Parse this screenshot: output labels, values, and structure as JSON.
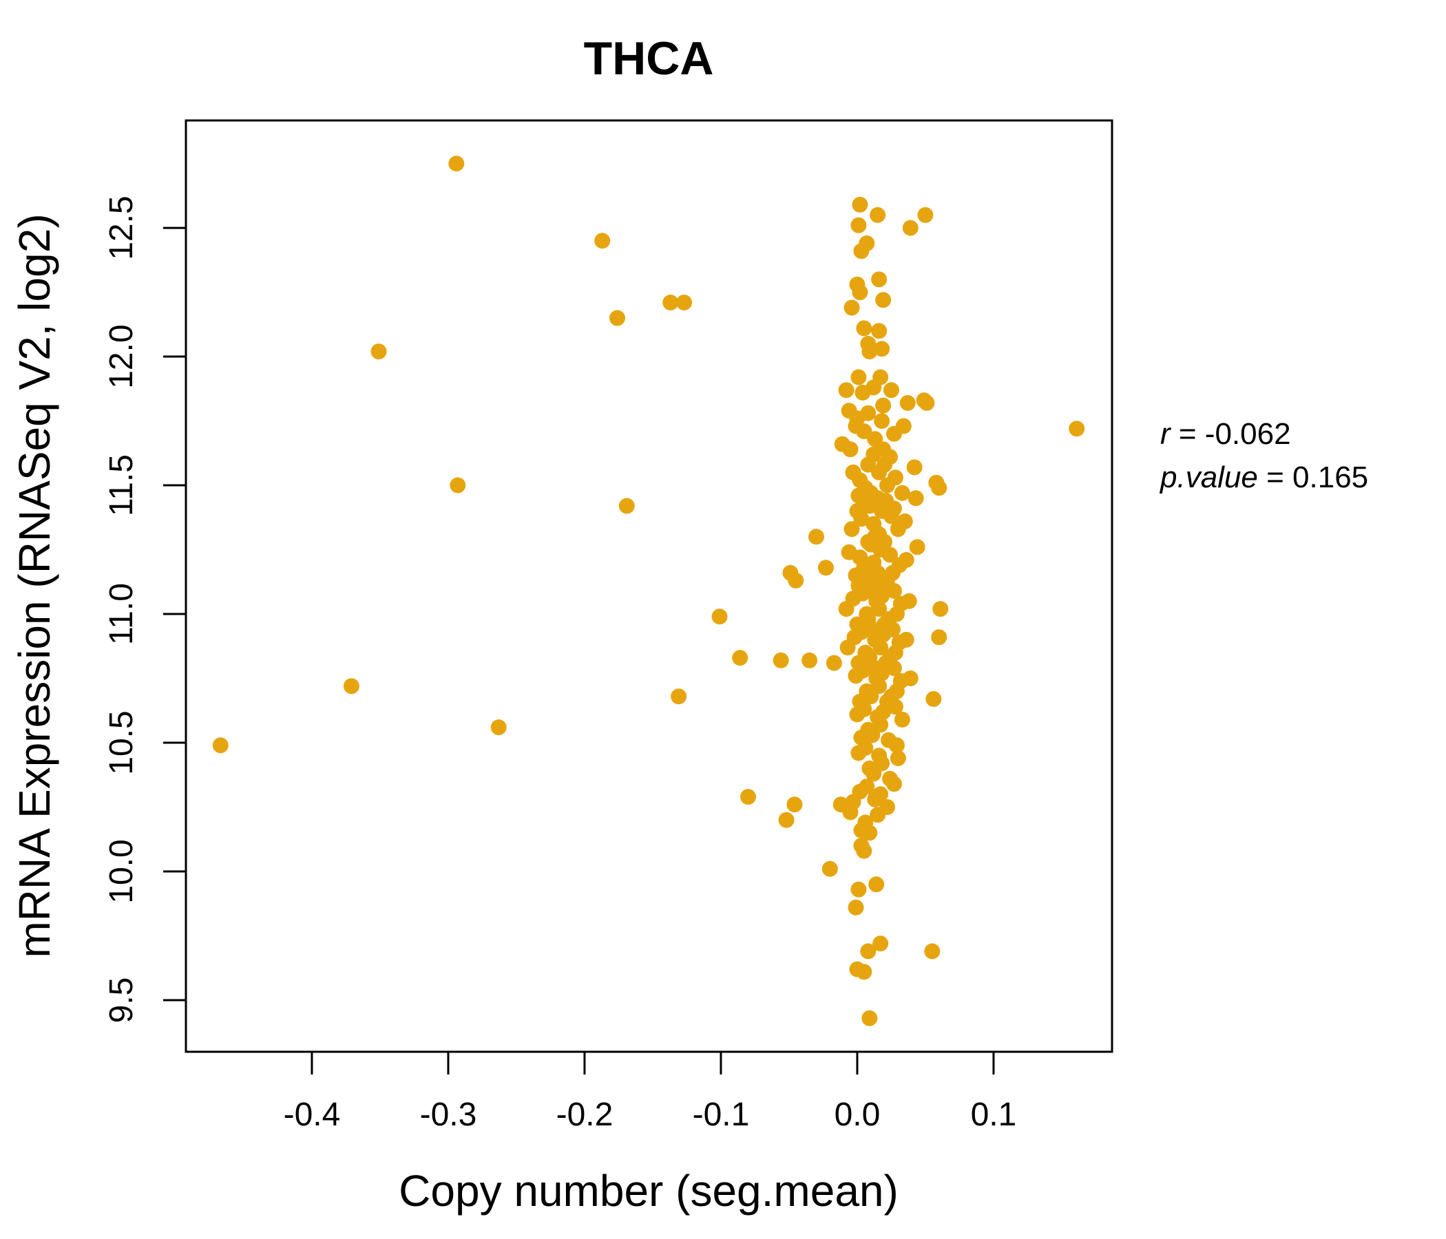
{
  "title": {
    "text": "THCA",
    "color": "#E6A50F"
  },
  "annotation": {
    "r_label": "r",
    "r_rest": " = -0.062",
    "p_label": "p.value",
    "p_rest": " = 0.165"
  },
  "chart_data": {
    "type": "scatter",
    "title": "THCA",
    "xlabel": "Copy number (seg.mean)",
    "ylabel": "mRNA Expression (RNASeq V2, log2)",
    "x_ticks": [
      -0.4,
      -0.3,
      -0.2,
      -0.1,
      0.0,
      0.1
    ],
    "x_tick_labels": [
      "-0.4",
      "-0.3",
      "-0.2",
      "-0.1",
      "0.0",
      "0.1"
    ],
    "y_ticks": [
      9.5,
      10.0,
      10.5,
      11.0,
      11.5,
      12.0,
      12.5
    ],
    "y_tick_labels": [
      "9.5",
      "10.0",
      "10.5",
      "11.0",
      "11.5",
      "12.0",
      "12.5"
    ],
    "xlim": [
      -0.4924,
      0.1869
    ],
    "ylim": [
      9.2995,
      12.9173
    ],
    "grid": false,
    "legend": "none",
    "point_color": "#E6A50F",
    "marker": "filled-circle",
    "marker_radius_px": 11.5,
    "correlation": {
      "r": -0.062,
      "p_value": 0.165
    },
    "points": [
      [
        -0.467,
        10.49
      ],
      [
        -0.371,
        10.72
      ],
      [
        -0.351,
        12.02
      ],
      [
        -0.294,
        12.75
      ],
      [
        -0.293,
        11.5
      ],
      [
        -0.263,
        10.56
      ],
      [
        -0.187,
        12.45
      ],
      [
        -0.176,
        12.15
      ],
      [
        -0.169,
        11.42
      ],
      [
        -0.137,
        12.21
      ],
      [
        -0.127,
        12.21
      ],
      [
        -0.131,
        10.68
      ],
      [
        -0.101,
        10.99
      ],
      [
        -0.086,
        10.83
      ],
      [
        -0.08,
        10.29
      ],
      [
        -0.056,
        10.82
      ],
      [
        -0.049,
        11.16
      ],
      [
        -0.046,
        10.26
      ],
      [
        -0.052,
        10.2
      ],
      [
        -0.045,
        11.13
      ],
      [
        -0.035,
        10.82
      ],
      [
        -0.03,
        11.3
      ],
      [
        -0.023,
        11.18
      ],
      [
        -0.017,
        10.81
      ],
      [
        -0.02,
        10.01
      ],
      [
        0.161,
        11.72
      ],
      [
        0.06,
        11.49
      ],
      [
        0.058,
        11.51
      ],
      [
        0.061,
        11.02
      ],
      [
        0.06,
        10.91
      ],
      [
        0.056,
        10.67
      ],
      [
        0.055,
        9.69
      ],
      [
        0.05,
        12.55
      ],
      [
        0.051,
        11.82
      ],
      [
        0.049,
        11.83
      ],
      [
        0.044,
        11.26
      ],
      [
        0.043,
        11.45
      ],
      [
        0.042,
        11.57
      ],
      [
        0.002,
        12.59
      ],
      [
        0.015,
        12.55
      ],
      [
        0.039,
        12.5
      ],
      [
        0.001,
        12.51
      ],
      [
        0.007,
        12.44
      ],
      [
        0.003,
        12.41
      ],
      [
        0.016,
        12.3
      ],
      [
        0.0,
        12.28
      ],
      [
        0.002,
        12.25
      ],
      [
        0.019,
        12.22
      ],
      [
        -0.004,
        12.19
      ],
      [
        0.005,
        12.11
      ],
      [
        0.016,
        12.1
      ],
      [
        0.008,
        12.05
      ],
      [
        0.009,
        12.02
      ],
      [
        0.018,
        12.03
      ],
      [
        0.001,
        11.92
      ],
      [
        0.017,
        11.92
      ],
      [
        -0.008,
        11.87
      ],
      [
        0.004,
        11.86
      ],
      [
        0.012,
        11.88
      ],
      [
        0.025,
        11.87
      ],
      [
        0.037,
        11.82
      ],
      [
        -0.006,
        11.79
      ],
      [
        0.008,
        11.78
      ],
      [
        0.019,
        11.81
      ],
      [
        0.0,
        11.76
      ],
      [
        0.034,
        11.73
      ],
      [
        0.018,
        11.75
      ],
      [
        -0.011,
        11.66
      ],
      [
        -0.005,
        11.64
      ],
      [
        0.013,
        11.68
      ],
      [
        0.019,
        11.64
      ],
      [
        0.005,
        11.71
      ],
      [
        0.012,
        11.62
      ],
      [
        0.027,
        11.7
      ],
      [
        -0.001,
        11.73
      ],
      [
        0.024,
        11.61
      ],
      [
        0.008,
        11.58
      ],
      [
        0.016,
        11.55
      ],
      [
        0.002,
        11.52
      ],
      [
        0.022,
        11.5
      ],
      [
        0.01,
        11.47
      ],
      [
        0.028,
        11.53
      ],
      [
        -0.003,
        11.55
      ],
      [
        0.015,
        11.45
      ],
      [
        0.006,
        11.49
      ],
      [
        0.033,
        11.47
      ],
      [
        0.02,
        11.58
      ],
      [
        0.001,
        11.46
      ],
      [
        0.009,
        11.42
      ],
      [
        0.018,
        11.4
      ],
      [
        0.003,
        11.37
      ],
      [
        0.025,
        11.38
      ],
      [
        0.012,
        11.35
      ],
      [
        -0.004,
        11.33
      ],
      [
        0.03,
        11.33
      ],
      [
        0.016,
        11.31
      ],
      [
        0.006,
        11.43
      ],
      [
        0.021,
        11.44
      ],
      [
        0.0,
        11.4
      ],
      [
        0.013,
        11.3
      ],
      [
        0.027,
        11.41
      ],
      [
        0.035,
        11.36
      ],
      [
        0.008,
        11.28
      ],
      [
        0.017,
        11.25
      ],
      [
        0.002,
        11.22
      ],
      [
        0.024,
        11.23
      ],
      [
        0.012,
        11.2
      ],
      [
        -0.006,
        11.24
      ],
      [
        0.031,
        11.19
      ],
      [
        0.015,
        11.16
      ],
      [
        0.005,
        11.18
      ],
      [
        0.02,
        11.28
      ],
      [
        0.01,
        11.27
      ],
      [
        0.026,
        11.16
      ],
      [
        -0.001,
        11.15
      ],
      [
        0.036,
        11.21
      ],
      [
        0.009,
        11.13
      ],
      [
        0.019,
        11.11
      ],
      [
        0.004,
        11.08
      ],
      [
        0.027,
        11.09
      ],
      [
        0.014,
        11.05
      ],
      [
        -0.003,
        11.06
      ],
      [
        0.032,
        11.04
      ],
      [
        0.016,
        11.02
      ],
      [
        0.007,
        11.0
      ],
      [
        0.022,
        11.13
      ],
      [
        0.001,
        11.11
      ],
      [
        0.011,
        11.09
      ],
      [
        0.029,
        11.0
      ],
      [
        0.018,
        11.07
      ],
      [
        -0.008,
        11.02
      ],
      [
        0.038,
        11.05
      ],
      [
        0.008,
        10.98
      ],
      [
        0.02,
        10.96
      ],
      [
        0.003,
        10.93
      ],
      [
        0.026,
        10.94
      ],
      [
        0.013,
        10.9
      ],
      [
        -0.002,
        10.91
      ],
      [
        0.031,
        10.89
      ],
      [
        0.017,
        10.87
      ],
      [
        0.006,
        10.85
      ],
      [
        0.023,
        10.98
      ],
      [
        0.0,
        10.96
      ],
      [
        0.012,
        10.94
      ],
      [
        0.028,
        10.85
      ],
      [
        0.019,
        10.92
      ],
      [
        -0.007,
        10.87
      ],
      [
        0.036,
        10.9
      ],
      [
        0.009,
        10.83
      ],
      [
        0.021,
        10.81
      ],
      [
        0.004,
        10.78
      ],
      [
        0.027,
        10.79
      ],
      [
        0.014,
        10.75
      ],
      [
        -0.001,
        10.76
      ],
      [
        0.032,
        10.74
      ],
      [
        0.016,
        10.72
      ],
      [
        0.007,
        10.7
      ],
      [
        0.024,
        10.83
      ],
      [
        0.001,
        10.81
      ],
      [
        0.013,
        10.79
      ],
      [
        0.029,
        10.7
      ],
      [
        0.018,
        10.77
      ],
      [
        0.039,
        10.75
      ],
      [
        0.01,
        10.68
      ],
      [
        0.022,
        10.66
      ],
      [
        0.005,
        10.63
      ],
      [
        0.028,
        10.64
      ],
      [
        0.015,
        10.6
      ],
      [
        0.0,
        10.61
      ],
      [
        0.033,
        10.59
      ],
      [
        0.017,
        10.57
      ],
      [
        0.008,
        10.55
      ],
      [
        0.025,
        10.68
      ],
      [
        0.002,
        10.66
      ],
      [
        0.019,
        10.62
      ],
      [
        0.011,
        10.53
      ],
      [
        0.023,
        10.51
      ],
      [
        0.006,
        10.48
      ],
      [
        0.029,
        10.49
      ],
      [
        0.016,
        10.45
      ],
      [
        0.001,
        10.46
      ],
      [
        0.03,
        10.44
      ],
      [
        0.018,
        10.42
      ],
      [
        0.009,
        10.4
      ],
      [
        0.003,
        10.52
      ],
      [
        0.012,
        10.38
      ],
      [
        0.024,
        10.36
      ],
      [
        0.007,
        10.33
      ],
      [
        0.027,
        10.34
      ],
      [
        0.017,
        10.3
      ],
      [
        0.002,
        10.31
      ],
      [
        0.013,
        10.28
      ],
      [
        -0.003,
        10.27
      ],
      [
        -0.012,
        10.26
      ],
      [
        0.022,
        10.25
      ],
      [
        0.015,
        10.22
      ],
      [
        -0.005,
        10.23
      ],
      [
        0.006,
        10.19
      ],
      [
        0.003,
        10.16
      ],
      [
        0.009,
        10.15
      ],
      [
        0.003,
        10.1
      ],
      [
        0.005,
        10.08
      ],
      [
        0.001,
        9.93
      ],
      [
        0.014,
        9.95
      ],
      [
        -0.001,
        9.86
      ],
      [
        0.017,
        9.72
      ],
      [
        0.008,
        9.69
      ],
      [
        0.0,
        9.62
      ],
      [
        0.005,
        9.61
      ],
      [
        0.009,
        9.43
      ]
    ]
  }
}
